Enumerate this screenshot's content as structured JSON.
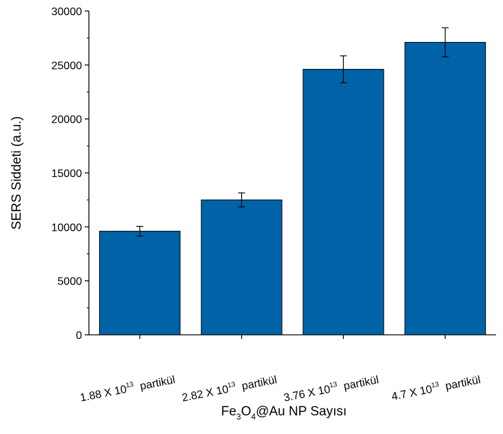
{
  "chart_data": {
    "type": "bar",
    "categories": [
      {
        "mantissa": "1.88",
        "times": "X",
        "base": "10",
        "exponent": "13",
        "unit": "partikül"
      },
      {
        "mantissa": "2.82",
        "times": "X",
        "base": "10",
        "exponent": "13",
        "unit": "partikül"
      },
      {
        "mantissa": "3.76",
        "times": "X",
        "base": "10",
        "exponent": "13",
        "unit": "partikül"
      },
      {
        "mantissa": "4.7",
        "times": "X",
        "base": "10",
        "exponent": "13",
        "unit": "partikül"
      }
    ],
    "values": [
      9600,
      12500,
      24600,
      27100
    ],
    "errors": [
      450,
      650,
      1250,
      1350
    ],
    "ylim": [
      0,
      30000
    ],
    "yticks": [
      0,
      5000,
      10000,
      15000,
      20000,
      25000,
      30000
    ],
    "ylabel": "SERS Siddeti (a.u.)",
    "xlabel": {
      "p1": "Fe",
      "s1": "3",
      "p2": "O",
      "s2": "4",
      "p3": "@Au NP Sayısı"
    },
    "grid": false,
    "bar_color": "#0063a7"
  }
}
